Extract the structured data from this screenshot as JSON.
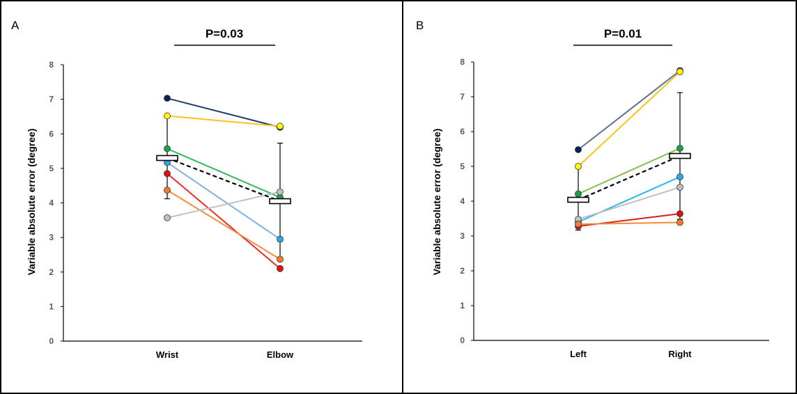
{
  "chart_data": [
    {
      "panel_label": "A",
      "type": "line",
      "annotation": "P=0.03",
      "ylabel": "Variable absolute error (degree)",
      "ylim": [
        0,
        8
      ],
      "yticks": [
        "0",
        "1",
        "2",
        "3",
        "4",
        "5",
        "6",
        "7",
        "8"
      ],
      "categories": [
        "Wrist",
        "Elbow"
      ],
      "series": [
        {
          "color": "#1f3a6e",
          "marker": "#0b1f5c",
          "values": [
            7.03,
            6.19
          ]
        },
        {
          "color": "#f5c518",
          "marker": "#ffff00",
          "values": [
            6.52,
            6.22
          ]
        },
        {
          "color": "#2ebd5a",
          "marker": "#1aa14a",
          "values": [
            5.57,
            4.16
          ]
        },
        {
          "color": "#7fb2e5",
          "marker": "#29a9e8",
          "values": [
            5.17,
            2.95
          ]
        },
        {
          "color": "#ee2b2b",
          "marker": "#e01010",
          "values": [
            4.85,
            2.1
          ]
        },
        {
          "color": "#f28c3c",
          "marker": "#ee7d31",
          "values": [
            4.37,
            2.37
          ]
        },
        {
          "color": "#bfbfbf",
          "marker": "#bfbfbf",
          "values": [
            3.57,
            4.32
          ]
        }
      ],
      "mean": {
        "values": [
          5.3,
          4.05
        ],
        "sd_upper": [
          6.48,
          5.73
        ],
        "sd_lower": [
          4.12,
          2.37
        ]
      }
    },
    {
      "panel_label": "B",
      "type": "line",
      "annotation": "P=0.01",
      "ylabel": "Variable absolute error (degree)",
      "ylim": [
        0,
        8
      ],
      "yticks": [
        "0",
        "1",
        "2",
        "3",
        "4",
        "5",
        "6",
        "7",
        "8"
      ],
      "categories": [
        "Left",
        "Right"
      ],
      "series": [
        {
          "color": "#5a6f8c",
          "marker": "#0b1f5c",
          "values": [
            5.48,
            7.75
          ]
        },
        {
          "color": "#f5c518",
          "marker": "#ffff00",
          "values": [
            5.0,
            7.72
          ]
        },
        {
          "color": "#7fbf50",
          "marker": "#1aa14a",
          "values": [
            4.21,
            5.52
          ]
        },
        {
          "color": "#29b6f0",
          "marker": "#29a9e8",
          "values": [
            3.4,
            4.7
          ]
        },
        {
          "color": "#bfbfbf",
          "marker": "#bfbfbf",
          "values": [
            3.48,
            4.4
          ]
        },
        {
          "color": "#d62020",
          "marker": "#e01010",
          "values": [
            3.28,
            3.64
          ]
        },
        {
          "color": "#f28c3c",
          "marker": "#ee7d31",
          "values": [
            3.34,
            3.39
          ]
        }
      ],
      "mean": {
        "values": [
          4.04,
          5.3
        ],
        "sd_upper": [
          4.96,
          7.12
        ],
        "sd_lower": [
          3.17,
          3.48
        ]
      }
    }
  ]
}
